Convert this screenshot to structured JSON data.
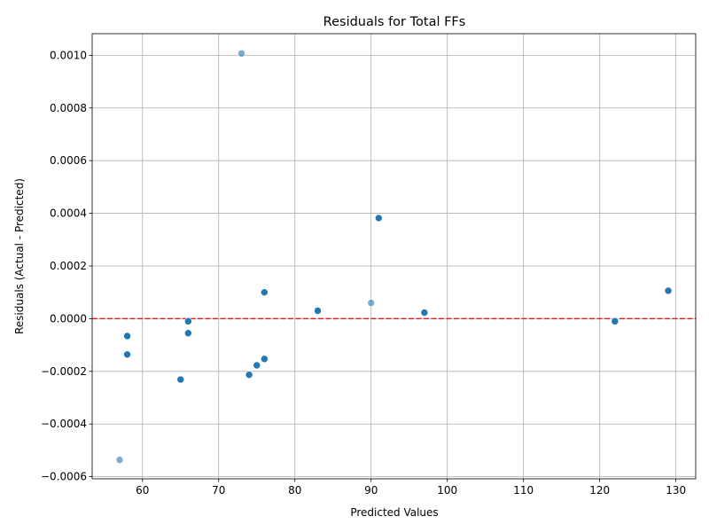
{
  "chart_data": {
    "type": "scatter",
    "title": "Residuals for Total FFs",
    "xlabel": "Predicted Values",
    "ylabel": "Residuals (Actual - Predicted)",
    "xlim": [
      53.4,
      132.6
    ],
    "ylim": [
      -0.000608,
      0.001082
    ],
    "xticks": [
      60,
      70,
      80,
      90,
      100,
      110,
      120,
      130
    ],
    "yticks": [
      -0.0006,
      -0.0004,
      -0.0002,
      0.0,
      0.0002,
      0.0004,
      0.0006,
      0.0008,
      0.001
    ],
    "xtick_labels": [
      "60",
      "70",
      "80",
      "90",
      "100",
      "110",
      "120",
      "130"
    ],
    "ytick_labels": [
      "−0.0006",
      "−0.0004",
      "−0.0002",
      "0.0000",
      "0.0002",
      "0.0004",
      "0.0006",
      "0.0008",
      "0.0010"
    ],
    "grid": true,
    "reference_line": {
      "y": 0,
      "color": "#d62728",
      "style": "dashed"
    },
    "point_color": "#1f77b4",
    "points": [
      {
        "x": 73,
        "y": 0.001007,
        "alpha": 0.6
      },
      {
        "x": 91,
        "y": 0.000382
      },
      {
        "x": 129,
        "y": 0.000106
      },
      {
        "x": 76,
        "y": 0.0001
      },
      {
        "x": 90,
        "y": 6e-05,
        "alpha": 0.6
      },
      {
        "x": 83,
        "y": 3e-05
      },
      {
        "x": 97,
        "y": 2.3e-05
      },
      {
        "x": 66,
        "y": -1e-05
      },
      {
        "x": 122,
        "y": -1e-05
      },
      {
        "x": 66,
        "y": -5.5e-05
      },
      {
        "x": 58,
        "y": -6.6e-05
      },
      {
        "x": 58,
        "y": -0.000136
      },
      {
        "x": 76,
        "y": -0.000153
      },
      {
        "x": 75,
        "y": -0.000177
      },
      {
        "x": 74,
        "y": -0.000213
      },
      {
        "x": 65,
        "y": -0.000231
      },
      {
        "x": 57,
        "y": -0.000536,
        "alpha": 0.6
      }
    ]
  }
}
